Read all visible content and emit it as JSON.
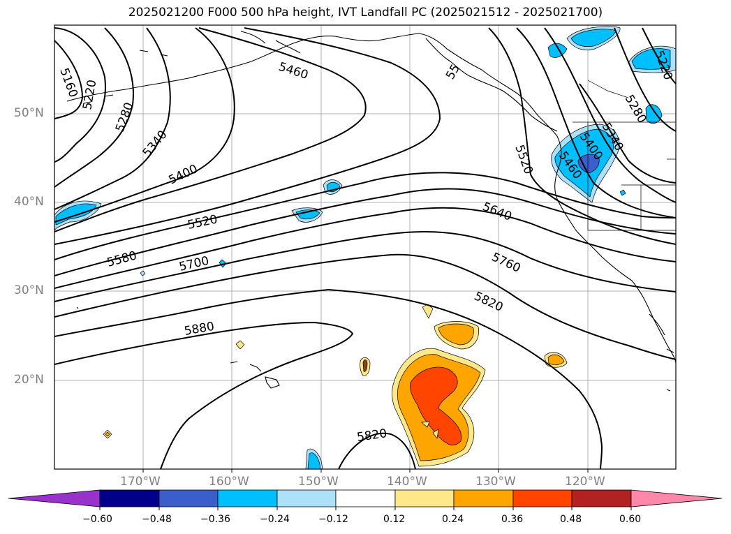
{
  "title": "2025021200 F000 500 hPa height, IVT Landfall PC (2025021512 - 2025021700)",
  "lat_labels": [
    "50°N",
    "40°N",
    "30°N",
    "20°N"
  ],
  "lon_labels": [
    "170°W",
    "160°W",
    "150°W",
    "140°W",
    "130°W",
    "120°W"
  ],
  "contour_labels": [
    "5160",
    "5220",
    "5280",
    "5340",
    "5400",
    "5460",
    "5520",
    "5580",
    "5700",
    "5880",
    "55",
    "5520",
    "5640",
    "5760",
    "5820",
    "5820",
    "5220",
    "5280",
    "5340",
    "5400",
    "5460"
  ],
  "colorbar": {
    "ticks": [
      "−0.60",
      "−0.48",
      "−0.36",
      "−0.24",
      "−0.12",
      "0.12",
      "0.24",
      "0.36",
      "0.48",
      "0.60"
    ],
    "colors": {
      "under": "#9932CC",
      "bins": [
        "#00008B",
        "#3A5FCD",
        "#00BFFF",
        "#ADE1FA",
        "#FFFFFF",
        "#FFE88A",
        "#FFA500",
        "#FF4500",
        "#B22222"
      ],
      "over": "#FF88AA"
    }
  },
  "accent_colors": {
    "negative": "#00BFFF",
    "negative_strong": "#3A5FCD",
    "positive": "#FFA500",
    "positive_strong": "#FF4500",
    "light_pos": "#FFE88A",
    "light_neg": "#ADE1FA"
  }
}
